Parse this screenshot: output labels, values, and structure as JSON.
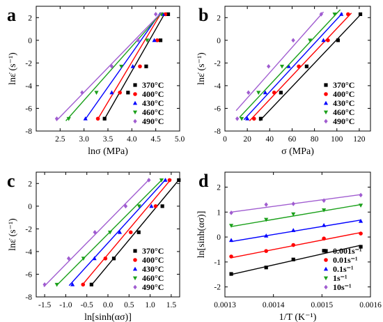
{
  "chart_data": [
    {
      "type": "scatter",
      "panel_label": "a",
      "xlabel": "lnσ (MPa)",
      "ylabel": "lnε̇ (s⁻¹)",
      "xlim": [
        2.0,
        5.0
      ],
      "ylim": [
        -8,
        3
      ],
      "xticks": [
        2.5,
        3.0,
        3.5,
        4.0,
        4.5,
        5.0
      ],
      "xticklabels": [
        "2.5",
        "3.0",
        "3.5",
        "4.0",
        "4.5",
        "5.0"
      ],
      "yticks": [
        -8,
        -6,
        -4,
        -2,
        0,
        2
      ],
      "yticklabels": [
        "-8",
        "-6",
        "-4",
        "-2",
        "0",
        "2"
      ],
      "legend": "bottom-right",
      "series": [
        {
          "name": "370°C",
          "color": "#000000",
          "marker": "square",
          "x": [
            3.43,
            3.92,
            4.3,
            4.6,
            4.76
          ],
          "y": [
            -6.91,
            -4.61,
            -2.3,
            0.0,
            2.3
          ],
          "fit_x": [
            3.42,
            4.7
          ],
          "fit_y": [
            -7.0,
            2.45
          ]
        },
        {
          "name": "400°C",
          "color": "#ff0000",
          "marker": "circle",
          "x": [
            3.29,
            3.75,
            4.17,
            4.53,
            4.7
          ],
          "y": [
            -6.91,
            -4.61,
            -2.3,
            0.0,
            2.3
          ],
          "fit_x": [
            3.28,
            4.62
          ],
          "fit_y": [
            -7.0,
            2.45
          ]
        },
        {
          "name": "430°C",
          "color": "#0000ff",
          "marker": "triangle-up",
          "x": [
            3.03,
            3.58,
            4.02,
            4.47,
            4.65
          ],
          "y": [
            -6.91,
            -4.61,
            -2.3,
            0.0,
            2.3
          ],
          "fit_x": [
            3.02,
            4.6
          ],
          "fit_y": [
            -7.0,
            2.45
          ]
        },
        {
          "name": "460°C",
          "color": "#1aa01a",
          "marker": "triangle-down",
          "x": [
            2.68,
            3.26,
            3.78,
            4.32,
            4.62
          ],
          "y": [
            -6.91,
            -4.61,
            -2.3,
            0.0,
            2.3
          ],
          "fit_x": [
            2.62,
            4.63
          ],
          "fit_y": [
            -7.1,
            2.45
          ]
        },
        {
          "name": "490°C",
          "color": "#a05cd0",
          "marker": "diamond",
          "x": [
            2.43,
            2.96,
            3.58,
            4.13,
            4.5
          ],
          "y": [
            -6.91,
            -4.61,
            -2.3,
            0.0,
            2.3
          ],
          "fit_x": [
            2.42,
            4.62
          ],
          "fit_y": [
            -7.1,
            2.45
          ]
        }
      ]
    },
    {
      "type": "scatter",
      "panel_label": "b",
      "xlabel": "σ (MPa)",
      "ylabel": "lnε̇ (s⁻¹)",
      "xlim": [
        0,
        130
      ],
      "ylim": [
        -8,
        3
      ],
      "xticks": [
        0,
        20,
        40,
        60,
        80,
        100,
        120
      ],
      "xticklabels": [
        "0",
        "20",
        "40",
        "60",
        "80",
        "100",
        "120"
      ],
      "yticks": [
        -8,
        -6,
        -4,
        -2,
        0,
        2
      ],
      "yticklabels": [
        "-8",
        "-6",
        "-4",
        "-2",
        "0",
        "2"
      ],
      "legend": "bottom-right",
      "series": [
        {
          "name": "370°C",
          "color": "#000000",
          "marker": "square",
          "x": [
            32,
            50,
            73,
            101,
            121
          ],
          "y": [
            -6.91,
            -4.61,
            -2.3,
            0.0,
            2.3
          ],
          "fit_x": [
            31,
            122
          ],
          "fit_y": [
            -7.1,
            2.35
          ]
        },
        {
          "name": "400°C",
          "color": "#ff0000",
          "marker": "circle",
          "x": [
            26,
            44,
            66,
            92,
            110
          ],
          "y": [
            -6.91,
            -4.61,
            -2.3,
            0.0,
            2.3
          ],
          "fit_x": [
            22,
            113
          ],
          "fit_y": [
            -7.1,
            2.4
          ]
        },
        {
          "name": "430°C",
          "color": "#0000ff",
          "marker": "triangle-up",
          "x": [
            20,
            36,
            57,
            88,
            104
          ],
          "y": [
            -6.91,
            -4.61,
            -2.3,
            0.0,
            2.3
          ],
          "fit_x": [
            17,
            105
          ],
          "fit_y": [
            -7.0,
            2.4
          ]
        },
        {
          "name": "460°C",
          "color": "#1aa01a",
          "marker": "triangle-down",
          "x": [
            15,
            30,
            51,
            76,
            98
          ],
          "y": [
            -6.91,
            -4.61,
            -2.3,
            0.0,
            2.3
          ],
          "fit_x": [
            13,
            103
          ],
          "fit_y": [
            -6.8,
            2.7
          ]
        },
        {
          "name": "490°C",
          "color": "#a05cd0",
          "marker": "diamond",
          "x": [
            11,
            21,
            39,
            61,
            86
          ],
          "y": [
            -6.91,
            -4.61,
            -2.3,
            0.0,
            2.3
          ],
          "fit_x": [
            10,
            88
          ],
          "fit_y": [
            -6.2,
            2.5
          ]
        }
      ]
    },
    {
      "type": "scatter",
      "panel_label": "c",
      "xlabel": "ln[sinh(ασ)]",
      "ylabel": "lnε̇ (s⁻¹)",
      "xlim": [
        -1.7,
        1.7
      ],
      "ylim": [
        -8,
        3
      ],
      "xticks": [
        -1.5,
        -1.0,
        -0.5,
        0.0,
        0.5,
        1.0,
        1.5
      ],
      "xticklabels": [
        "-1.5",
        "-1.0",
        "-0.5",
        "0.0",
        "0.5",
        "1.0",
        "1.5"
      ],
      "yticks": [
        -8,
        -6,
        -4,
        -2,
        0,
        2
      ],
      "yticklabels": [
        "-8",
        "-6",
        "-4",
        "-2",
        "0",
        "2"
      ],
      "legend": "bottom-right",
      "series": [
        {
          "name": "370°C",
          "color": "#000000",
          "marker": "square",
          "x": [
            -0.39,
            0.14,
            0.73,
            1.29,
            1.68
          ],
          "y": [
            -6.91,
            -4.61,
            -2.3,
            0.0,
            2.3
          ],
          "fit_x": [
            -0.4,
            1.7
          ],
          "fit_y": [
            -7.0,
            2.4
          ]
        },
        {
          "name": "400°C",
          "color": "#ff0000",
          "marker": "circle",
          "x": [
            -0.59,
            -0.06,
            0.54,
            1.13,
            1.46
          ],
          "y": [
            -6.91,
            -4.61,
            -2.3,
            0.0,
            2.3
          ],
          "fit_x": [
            -0.62,
            1.5
          ],
          "fit_y": [
            -7.0,
            2.4
          ]
        },
        {
          "name": "430°C",
          "color": "#0000ff",
          "marker": "triangle-up",
          "x": [
            -0.84,
            -0.32,
            0.28,
            1.03,
            1.36
          ],
          "y": [
            -6.91,
            -4.61,
            -2.3,
            0.0,
            2.3
          ],
          "fit_x": [
            -0.92,
            1.38
          ],
          "fit_y": [
            -7.0,
            2.4
          ]
        },
        {
          "name": "460°C",
          "color": "#1aa01a",
          "marker": "triangle-down",
          "x": [
            -1.21,
            -0.58,
            0.05,
            0.74,
            1.27
          ],
          "y": [
            -6.91,
            -4.61,
            -2.3,
            0.0,
            2.3
          ],
          "fit_x": [
            -1.22,
            1.3
          ],
          "fit_y": [
            -7.0,
            2.4
          ]
        },
        {
          "name": "490°C",
          "color": "#a05cd0",
          "marker": "diamond",
          "x": [
            -1.5,
            -0.93,
            -0.31,
            0.42,
            0.97
          ],
          "y": [
            -6.91,
            -4.61,
            -2.3,
            0.0,
            2.3
          ],
          "fit_x": [
            -1.52,
            0.99
          ],
          "fit_y": [
            -7.1,
            2.4
          ]
        }
      ]
    },
    {
      "type": "scatter",
      "panel_label": "d",
      "xlabel": "1/T (K⁻¹)",
      "ylabel": "ln[sinh(ασ)]",
      "xlim": [
        0.0013,
        0.0016
      ],
      "ylim": [
        -2.4,
        2.6
      ],
      "xticks": [
        0.0013,
        0.0014,
        0.0015,
        0.0016
      ],
      "xticklabels": [
        "0.0013",
        "0.0014",
        "0.0015",
        "0.0016"
      ],
      "yticks": [
        -2,
        -1,
        0,
        1,
        2
      ],
      "yticklabels": [
        "-2",
        "-1",
        "0",
        "1",
        "2"
      ],
      "legend": "bottom-right",
      "series": [
        {
          "name": "0.001s⁻¹",
          "color": "#000000",
          "marker": "square",
          "x": [
            0.001313,
            0.001385,
            0.001441,
            0.001504,
            0.00158
          ],
          "y": [
            -1.48,
            -1.22,
            -0.9,
            -0.55,
            -0.39
          ],
          "fit_x": [
            0.001313,
            0.00158
          ],
          "fit_y": [
            -1.5,
            -0.33
          ]
        },
        {
          "name": "0.01s⁻¹",
          "color": "#ff0000",
          "marker": "circle",
          "x": [
            0.001313,
            0.001385,
            0.001441,
            0.001504,
            0.00158
          ],
          "y": [
            -0.78,
            -0.56,
            -0.32,
            -0.06,
            0.14
          ],
          "fit_x": [
            0.001313,
            0.00158
          ],
          "fit_y": [
            -0.83,
            0.18
          ]
        },
        {
          "name": "0.1s⁻¹",
          "color": "#0000ff",
          "marker": "triangle-up",
          "x": [
            0.001313,
            0.001385,
            0.001441,
            0.001504,
            0.00158
          ],
          "y": [
            -0.13,
            0.05,
            0.27,
            0.47,
            0.64
          ],
          "fit_x": [
            0.001313,
            0.00158
          ],
          "fit_y": [
            -0.18,
            0.68
          ]
        },
        {
          "name": "1s⁻¹",
          "color": "#1aa01a",
          "marker": "triangle-down",
          "x": [
            0.001313,
            0.001385,
            0.001441,
            0.001504,
            0.00158
          ],
          "y": [
            0.46,
            0.7,
            0.92,
            1.08,
            1.27
          ],
          "fit_x": [
            0.001313,
            0.00158
          ],
          "fit_y": [
            0.42,
            1.3
          ]
        },
        {
          "name": "10s⁻¹",
          "color": "#a05cd0",
          "marker": "diamond",
          "x": [
            0.001313,
            0.001385,
            0.001441,
            0.001504,
            0.00158
          ],
          "y": [
            0.97,
            1.3,
            1.33,
            1.46,
            1.68
          ],
          "fit_x": [
            0.001313,
            0.00158
          ],
          "fit_y": [
            1.0,
            1.7
          ]
        }
      ]
    }
  ]
}
